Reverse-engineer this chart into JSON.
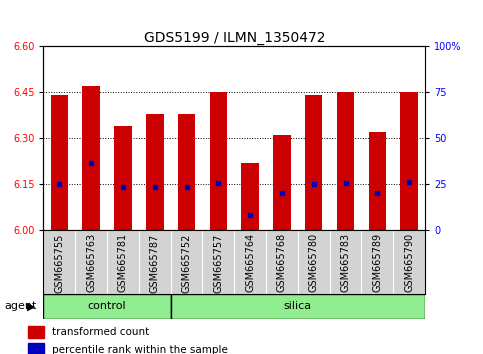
{
  "title": "GDS5199 / ILMN_1350472",
  "samples": [
    "GSM665755",
    "GSM665763",
    "GSM665781",
    "GSM665787",
    "GSM665752",
    "GSM665757",
    "GSM665764",
    "GSM665768",
    "GSM665780",
    "GSM665783",
    "GSM665789",
    "GSM665790"
  ],
  "bar_bottom": 6.0,
  "bar_tops": [
    6.44,
    6.47,
    6.34,
    6.38,
    6.38,
    6.45,
    6.22,
    6.31,
    6.44,
    6.45,
    6.32,
    6.45
  ],
  "percentile_vals": [
    6.15,
    6.22,
    6.14,
    6.14,
    6.14,
    6.155,
    6.05,
    6.12,
    6.15,
    6.155,
    6.12,
    6.158
  ],
  "ylim": [
    6.0,
    6.6
  ],
  "yticks_left": [
    6.0,
    6.15,
    6.3,
    6.45,
    6.6
  ],
  "yticks_right": [
    0,
    25,
    50,
    75,
    100
  ],
  "bar_color": "#CC0000",
  "dot_color": "#0000BB",
  "control_color": "#90EE90",
  "silica_color": "#90EE90",
  "n_control": 4,
  "n_silica": 8,
  "title_fontsize": 10,
  "tick_fontsize": 7,
  "label_fontsize": 8,
  "xtick_bg": "#D3D3D3"
}
